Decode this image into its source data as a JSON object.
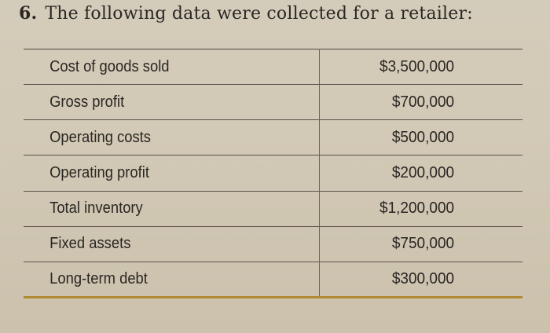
{
  "question": {
    "number": "6.",
    "text": "The following data were collected for a retailer:"
  },
  "table": {
    "rows": [
      {
        "label": "Cost of goods sold",
        "value": "$3,500,000"
      },
      {
        "label": "Gross profit",
        "value": "$700,000"
      },
      {
        "label": "Operating costs",
        "value": "$500,000"
      },
      {
        "label": "Operating profit",
        "value": "$200,000"
      },
      {
        "label": "Total inventory",
        "value": "$1,200,000"
      },
      {
        "label": "Fixed assets",
        "value": "$750,000"
      },
      {
        "label": "Long-term debt",
        "value": "$300,000"
      }
    ]
  },
  "colors": {
    "paper": "#d2c9b6",
    "ink": "#2a2622",
    "bottom_rule": "#b28a35"
  }
}
